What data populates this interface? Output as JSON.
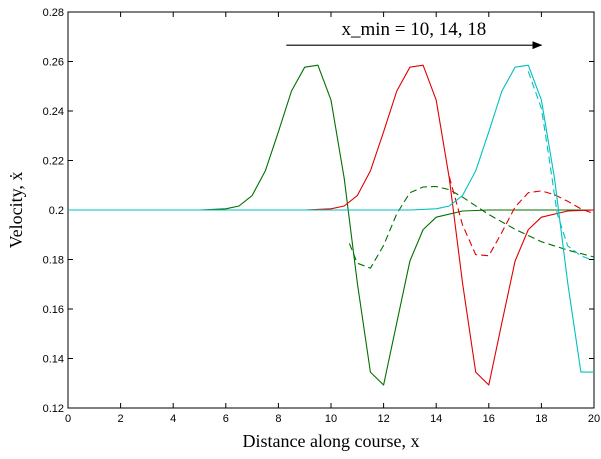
{
  "chart_data": {
    "type": "line",
    "xlabel": "Distance along course, x",
    "ylabel": "Velocity, ẋ",
    "xlim": [
      0,
      20
    ],
    "ylim": [
      0.12,
      0.28
    ],
    "xticks": [
      "0",
      "2",
      "4",
      "6",
      "8",
      "10",
      "12",
      "14",
      "16",
      "18",
      "20"
    ],
    "yticks": [
      "0.12",
      "0.14",
      "0.16",
      "0.18",
      "0.2",
      "0.22",
      "0.24",
      "0.26",
      "0.28"
    ],
    "grid": false,
    "annotation": {
      "text": "x_min = 10, 14, 18",
      "arrow_from_x": 8.3,
      "arrow_to_x": 18.0,
      "arrow_y": 0.2666
    },
    "series": [
      {
        "color": "#007000",
        "style": "solid",
        "x": [
          0,
          5,
          6,
          6.5,
          7,
          7.5,
          8,
          8.5,
          9,
          9.5,
          10,
          10.5,
          11,
          11.5,
          12,
          12.5,
          13,
          13.5,
          14,
          15,
          16,
          17,
          18,
          19,
          20
        ],
        "y": [
          0.2,
          0.2,
          0.2005,
          0.2016,
          0.2058,
          0.2158,
          0.2316,
          0.2481,
          0.2577,
          0.2585,
          0.2444,
          0.2128,
          0.1706,
          0.1345,
          0.1293,
          0.1545,
          0.1794,
          0.1921,
          0.1971,
          0.1996,
          0.2,
          0.2,
          0.2,
          0.2,
          0.2
        ]
      },
      {
        "color": "#007000",
        "style": "dashed",
        "x": [
          10.7,
          11,
          11.5,
          12,
          12.5,
          13,
          13.5,
          14,
          14.5,
          15,
          16,
          17,
          18,
          19,
          20
        ],
        "y": [
          0.1865,
          0.1785,
          0.1765,
          0.1857,
          0.1985,
          0.207,
          0.2093,
          0.2095,
          0.2082,
          0.2052,
          0.1982,
          0.1922,
          0.1872,
          0.1838,
          0.181
        ]
      },
      {
        "color": "#e00000",
        "style": "solid",
        "x": [
          0,
          9,
          10,
          10.5,
          11,
          11.5,
          12,
          12.5,
          13,
          13.5,
          14,
          14.5,
          15,
          15.5,
          16,
          16.5,
          17,
          17.5,
          18,
          19,
          20
        ],
        "y": [
          0.2,
          0.2,
          0.2005,
          0.2016,
          0.2058,
          0.2158,
          0.2316,
          0.2481,
          0.2577,
          0.2585,
          0.2444,
          0.2128,
          0.1706,
          0.1345,
          0.1293,
          0.1545,
          0.1794,
          0.1921,
          0.1971,
          0.1996,
          0.2
        ]
      },
      {
        "color": "#e00000",
        "style": "dashed",
        "x": [
          14.5,
          15,
          15.5,
          16,
          16.5,
          17,
          17.5,
          18,
          18.5,
          19,
          19.5,
          20
        ],
        "y": [
          0.2135,
          0.194,
          0.182,
          0.1815,
          0.191,
          0.2012,
          0.207,
          0.2077,
          0.2062,
          0.2035,
          0.2005,
          0.1985
        ]
      },
      {
        "color": "#00c0c0",
        "style": "solid",
        "x": [
          0,
          13,
          14,
          14.5,
          15,
          15.5,
          16,
          16.5,
          17,
          17.5,
          18,
          18.5,
          19,
          19.5,
          20
        ],
        "y": [
          0.2,
          0.2,
          0.2005,
          0.2016,
          0.2058,
          0.2158,
          0.2316,
          0.2481,
          0.2577,
          0.2585,
          0.2444,
          0.2128,
          0.1706,
          0.1345,
          0.1345
        ]
      },
      {
        "color": "#00c0c0",
        "style": "dashed",
        "x": [
          17.5,
          18,
          18.3,
          18.6,
          19,
          19.5,
          20
        ],
        "y": [
          0.256,
          0.241,
          0.2205,
          0.1985,
          0.1855,
          0.1815,
          0.1795
        ]
      }
    ]
  }
}
